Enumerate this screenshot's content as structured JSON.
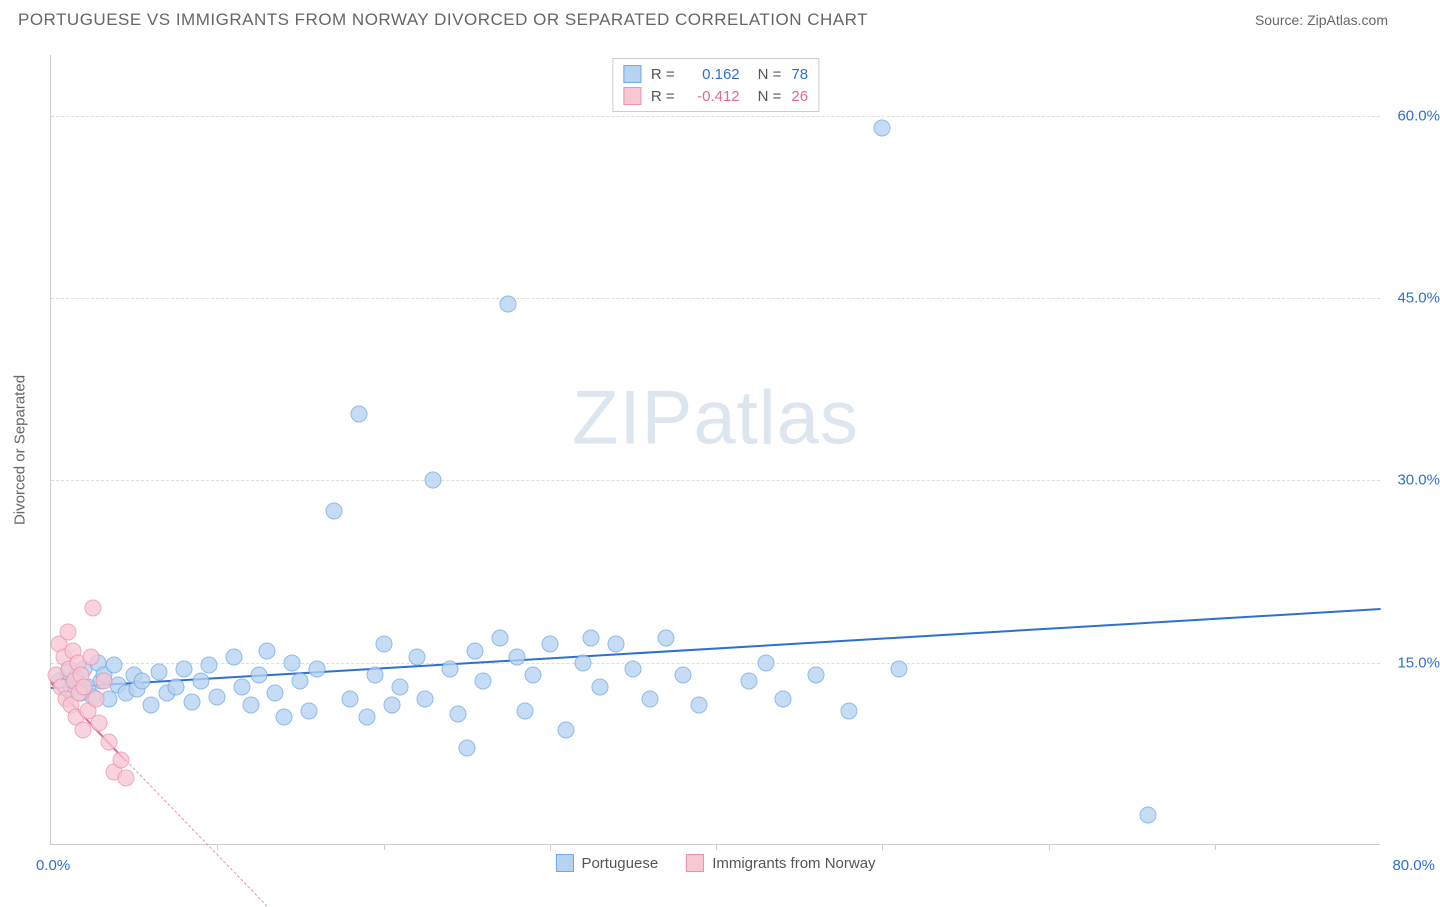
{
  "header": {
    "title": "PORTUGUESE VS IMMIGRANTS FROM NORWAY DIVORCED OR SEPARATED CORRELATION CHART",
    "source": "Source: ZipAtlas.com"
  },
  "watermark": {
    "zip": "ZIP",
    "atlas": "atlas"
  },
  "chart": {
    "type": "scatter",
    "background_color": "#ffffff",
    "grid_color": "#dddddd",
    "axis_color": "#cccccc",
    "x": {
      "min": 0,
      "max": 80,
      "label_min": "0.0%",
      "label_max": "80.0%",
      "label_color": "#2f6fd0",
      "tick_step": 10
    },
    "y": {
      "min": 0,
      "max": 65,
      "ticks": [
        15,
        30,
        45,
        60
      ],
      "tick_labels": [
        "15.0%",
        "30.0%",
        "45.0%",
        "60.0%"
      ],
      "label_color": "#2f6fd0",
      "axis_label": "Divorced or Separated",
      "axis_label_color": "#666666",
      "fontsize": 15
    },
    "series": [
      {
        "name": "Portuguese",
        "fill": "#b7d3f2",
        "stroke": "#6ea8e6",
        "trend_color": "#2f6fd0",
        "r_label": "R =",
        "r_value": "0.162",
        "n_label": "N =",
        "n_value": "78",
        "trend": {
          "x1": 0,
          "y1": 13.0,
          "x2": 80,
          "y2": 19.5
        },
        "points": [
          [
            0.5,
            13.5
          ],
          [
            1.0,
            14.2
          ],
          [
            1.2,
            12.8
          ],
          [
            1.5,
            13.8
          ],
          [
            1.8,
            12.5
          ],
          [
            2.0,
            14.5
          ],
          [
            2.2,
            13.0
          ],
          [
            2.5,
            12.2
          ],
          [
            2.8,
            15.0
          ],
          [
            3.0,
            13.5
          ],
          [
            3.2,
            14.0
          ],
          [
            3.5,
            12.0
          ],
          [
            3.8,
            14.8
          ],
          [
            4.0,
            13.2
          ],
          [
            4.5,
            12.5
          ],
          [
            5.0,
            14.0
          ],
          [
            5.2,
            12.8
          ],
          [
            5.5,
            13.5
          ],
          [
            6.0,
            11.5
          ],
          [
            6.5,
            14.2
          ],
          [
            7.0,
            12.5
          ],
          [
            7.5,
            13.0
          ],
          [
            8.0,
            14.5
          ],
          [
            8.5,
            11.8
          ],
          [
            9.0,
            13.5
          ],
          [
            9.5,
            14.8
          ],
          [
            10.0,
            12.2
          ],
          [
            11.0,
            15.5
          ],
          [
            11.5,
            13.0
          ],
          [
            12.0,
            11.5
          ],
          [
            12.5,
            14.0
          ],
          [
            13.0,
            16.0
          ],
          [
            13.5,
            12.5
          ],
          [
            14.0,
            10.5
          ],
          [
            14.5,
            15.0
          ],
          [
            15.0,
            13.5
          ],
          [
            15.5,
            11.0
          ],
          [
            16.0,
            14.5
          ],
          [
            17.0,
            27.5
          ],
          [
            18.0,
            12.0
          ],
          [
            18.5,
            35.5
          ],
          [
            19.0,
            10.5
          ],
          [
            19.5,
            14.0
          ],
          [
            20.0,
            16.5
          ],
          [
            20.5,
            11.5
          ],
          [
            21.0,
            13.0
          ],
          [
            22.0,
            15.5
          ],
          [
            22.5,
            12.0
          ],
          [
            23.0,
            30.0
          ],
          [
            24.0,
            14.5
          ],
          [
            24.5,
            10.8
          ],
          [
            25.0,
            8.0
          ],
          [
            25.5,
            16.0
          ],
          [
            26.0,
            13.5
          ],
          [
            27.0,
            17.0
          ],
          [
            27.5,
            44.5
          ],
          [
            28.0,
            15.5
          ],
          [
            28.5,
            11.0
          ],
          [
            29.0,
            14.0
          ],
          [
            30.0,
            16.5
          ],
          [
            31.0,
            9.5
          ],
          [
            32.0,
            15.0
          ],
          [
            32.5,
            17.0
          ],
          [
            33.0,
            13.0
          ],
          [
            34.0,
            16.5
          ],
          [
            35.0,
            14.5
          ],
          [
            36.0,
            12.0
          ],
          [
            37.0,
            17.0
          ],
          [
            38.0,
            14.0
          ],
          [
            39.0,
            11.5
          ],
          [
            42.0,
            13.5
          ],
          [
            43.0,
            15.0
          ],
          [
            44.0,
            12.0
          ],
          [
            46.0,
            14.0
          ],
          [
            48.0,
            11.0
          ],
          [
            50.0,
            59.0
          ],
          [
            51.0,
            14.5
          ],
          [
            66.0,
            2.5
          ]
        ]
      },
      {
        "name": "Immigrants from Norway",
        "fill": "#f7c7d4",
        "stroke": "#ec92ac",
        "trend_color": "#e06a8c",
        "r_label": "R =",
        "r_value": "-0.412",
        "n_label": "N =",
        "n_value": "26",
        "trend": {
          "x1": 0,
          "y1": 13.5,
          "x2": 4.5,
          "y2": 7.0
        },
        "trend_dash": {
          "x1": 4.5,
          "y1": 7.0,
          "x2": 13.0,
          "y2": -5.0
        },
        "points": [
          [
            0.3,
            14.0
          ],
          [
            0.5,
            16.5
          ],
          [
            0.6,
            13.0
          ],
          [
            0.8,
            15.5
          ],
          [
            0.9,
            12.0
          ],
          [
            1.0,
            17.5
          ],
          [
            1.1,
            14.5
          ],
          [
            1.2,
            11.5
          ],
          [
            1.3,
            16.0
          ],
          [
            1.4,
            13.5
          ],
          [
            1.5,
            10.5
          ],
          [
            1.6,
            15.0
          ],
          [
            1.7,
            12.5
          ],
          [
            1.8,
            14.0
          ],
          [
            1.9,
            9.5
          ],
          [
            2.0,
            13.0
          ],
          [
            2.2,
            11.0
          ],
          [
            2.4,
            15.5
          ],
          [
            2.5,
            19.5
          ],
          [
            2.7,
            12.0
          ],
          [
            2.9,
            10.0
          ],
          [
            3.2,
            13.5
          ],
          [
            3.5,
            8.5
          ],
          [
            3.8,
            6.0
          ],
          [
            4.2,
            7.0
          ],
          [
            4.5,
            5.5
          ]
        ]
      }
    ],
    "legend_bottom": [
      {
        "label": "Portuguese",
        "fill": "#b7d3f2",
        "stroke": "#6ea8e6"
      },
      {
        "label": "Immigrants from Norway",
        "fill": "#f7c7d4",
        "stroke": "#ec92ac"
      }
    ]
  }
}
